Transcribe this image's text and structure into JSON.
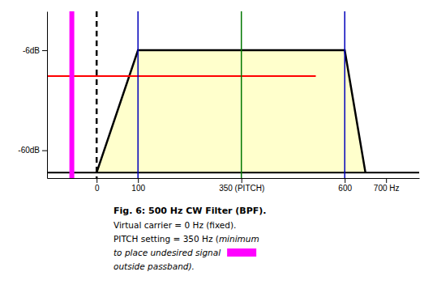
{
  "chart_data": {
    "type": "area",
    "title": "Fig. 6:  500 Hz CW Filter (BPF).",
    "caption": [
      "Virtual carrier = 0 Hz (fixed).",
      "PITCH setting = 350 Hz (",
      "minimum",
      "to place undesired signal",
      "outside passband)."
    ],
    "xlim": [
      -120,
      780
    ],
    "ylim": [
      -75,
      15
    ],
    "xticks": [
      0,
      100,
      {
        "value": 350,
        "label": "350 (PITCH)"
      },
      600,
      {
        "value": 700,
        "label": "700 Hz"
      }
    ],
    "yticks": [
      {
        "value": -60,
        "label": "-60dB"
      },
      {
        "value": -6,
        "label": "-6dB"
      }
    ],
    "grid": false,
    "series": [
      {
        "type": "area",
        "x": [
          0,
          100,
          600,
          650
        ],
        "values": [
          -72,
          -6,
          -6,
          -72
        ],
        "baseline": -72,
        "color": "#ffffcc"
      },
      {
        "type": "line",
        "x": [
          0,
          100,
          600,
          650
        ],
        "values": [
          -72,
          -6,
          -6,
          -72
        ],
        "color": "#000000"
      },
      {
        "type": "line",
        "x": [
          -120,
          780
        ],
        "values": [
          -72,
          -72
        ],
        "color": "#000000"
      },
      {
        "type": "line",
        "x": [
          -120,
          530
        ],
        "values": [
          -20,
          -20
        ],
        "color": "#ff0000"
      }
    ],
    "vlines": [
      {
        "x": -60,
        "color": "#ff00ff"
      },
      {
        "x": 0,
        "color": "#000000",
        "line_style": "dashed"
      },
      {
        "x": 100,
        "color": "#0000bb"
      },
      {
        "x": 600,
        "color": "#0000bb"
      },
      {
        "x": 350,
        "color": "#007700"
      }
    ]
  }
}
